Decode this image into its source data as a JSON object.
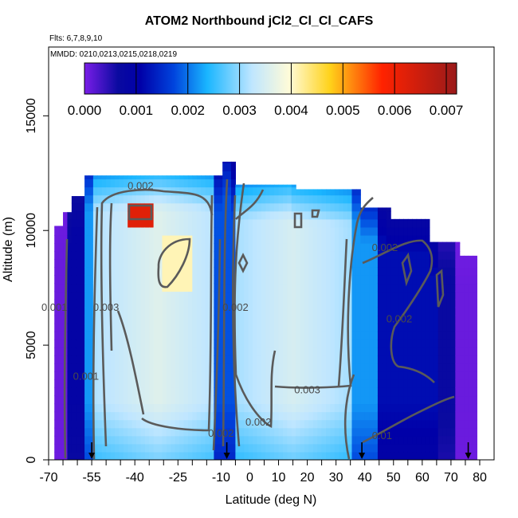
{
  "title": "ATOM2 Northbound jCl2_Cl_Cl_CAFS",
  "flights_label": "Flts: 6,7,8,9,10",
  "mmdd_label": "MMDD: 0210,0213,0215,0218,0219",
  "colors": {
    "scale": [
      "#7a1ee8",
      "#0a0aa0",
      "#0044dd",
      "#1ab6ff",
      "#bfe6ff",
      "#fffbd8",
      "#ffd21a",
      "#ff2200",
      "#9a1a1a"
    ],
    "contour": "#5a5a5a"
  },
  "chart_data": {
    "type": "heatmap",
    "title": "ATOM2 Northbound jCl2_Cl_Cl_CAFS",
    "xlabel": "Latitude (deg N)",
    "ylabel": "Altitude (m)",
    "xlim": [
      -70,
      85
    ],
    "ylim": [
      0,
      18000
    ],
    "x_ticks": [
      -70,
      -55,
      -40,
      -25,
      -10,
      0,
      10,
      20,
      30,
      40,
      50,
      60,
      70,
      80
    ],
    "y_ticks": [
      0,
      5000,
      10000,
      15000
    ],
    "colorbar": {
      "ticks": [
        0.0,
        0.001,
        0.002,
        0.003,
        0.004,
        0.005,
        0.006,
        0.007
      ],
      "tick_labels": [
        "0.000",
        "0.001",
        "0.002",
        "0.003",
        "0.004",
        "0.005",
        "0.006",
        "0.007"
      ],
      "range": [
        0.0,
        0.0072
      ]
    },
    "profile_arrows_lat": [
      -55,
      -8,
      39,
      76
    ],
    "contour_labels": [
      {
        "text": "0.002",
        "lat": -38,
        "alt": 11800
      },
      {
        "text": "0.003",
        "lat": -50,
        "alt": 6500
      },
      {
        "text": "0.001",
        "lat": -57,
        "alt": 3500
      },
      {
        "text": "0.002",
        "lat": -5,
        "alt": 6500
      },
      {
        "text": "0.002",
        "lat": -10,
        "alt": 1000
      },
      {
        "text": "0.002",
        "lat": 3,
        "alt": 1500
      },
      {
        "text": "0.003",
        "lat": 20,
        "alt": 2900
      },
      {
        "text": "0.002",
        "lat": 47,
        "alt": 9100
      },
      {
        "text": "0.002",
        "lat": 52,
        "alt": 6000
      },
      {
        "text": "0.01",
        "lat": 46,
        "alt": 900
      },
      {
        "text": "0.001",
        "lat": -68,
        "alt": 6500
      }
    ]
  }
}
